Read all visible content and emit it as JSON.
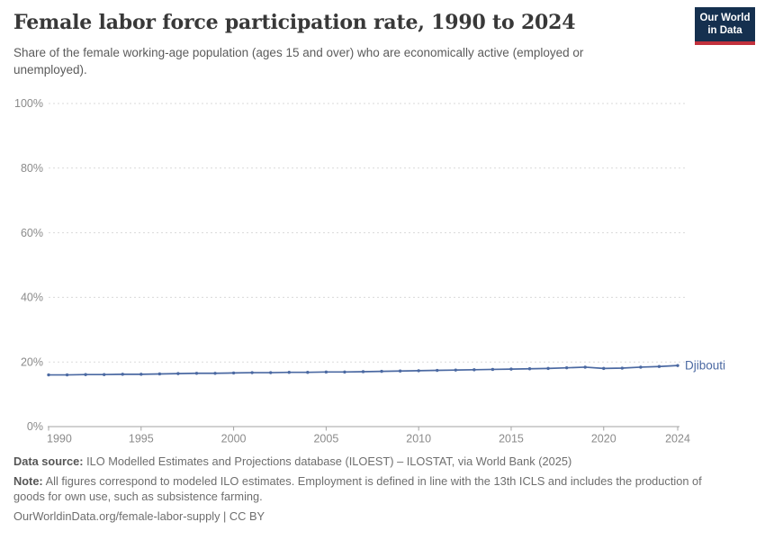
{
  "header": {
    "title": "Female labor force participation rate, 1990 to 2024",
    "subtitle": "Share of the female working-age population (ages 15 and over) who are economically active (employed or unemployed).",
    "logo": {
      "line1": "Our World",
      "line2": "in Data"
    }
  },
  "chart_data": {
    "type": "line",
    "title": "Female labor force participation rate, 1990 to 2024",
    "xlabel": "",
    "ylabel": "",
    "xlim": [
      1990,
      2024
    ],
    "ylim": [
      0,
      100
    ],
    "x_ticks": [
      1990,
      1995,
      2000,
      2005,
      2010,
      2015,
      2020,
      2024
    ],
    "y_ticks": [
      0,
      20,
      40,
      60,
      80,
      100
    ],
    "y_tick_suffix": "%",
    "grid": "horizontal-dashed",
    "legend": "end-of-line-label",
    "series": [
      {
        "name": "Djibouti",
        "color": "#4b69a2",
        "x": [
          1990,
          1991,
          1992,
          1993,
          1994,
          1995,
          1996,
          1997,
          1998,
          1999,
          2000,
          2001,
          2002,
          2003,
          2004,
          2005,
          2006,
          2007,
          2008,
          2009,
          2010,
          2011,
          2012,
          2013,
          2014,
          2015,
          2016,
          2017,
          2018,
          2019,
          2020,
          2021,
          2022,
          2023,
          2024
        ],
        "values": [
          16.0,
          16.0,
          16.1,
          16.1,
          16.2,
          16.2,
          16.3,
          16.4,
          16.5,
          16.5,
          16.6,
          16.7,
          16.7,
          16.8,
          16.8,
          16.9,
          16.9,
          17.0,
          17.1,
          17.2,
          17.3,
          17.4,
          17.5,
          17.6,
          17.7,
          17.8,
          17.9,
          18.0,
          18.2,
          18.4,
          18.0,
          18.1,
          18.4,
          18.6,
          18.9
        ]
      }
    ]
  },
  "footer": {
    "data_source_label": "Data source:",
    "data_source": "ILO Modelled Estimates and Projections database (ILOEST) – ILOSTAT, via World Bank (2025)",
    "note_label": "Note:",
    "note": "All figures correspond to modeled ILO estimates. Employment is defined in line with the 13th ICLS and includes the production of goods for own use, such as subsistence farming.",
    "citation": "OurWorldinData.org/female-labor-supply | CC BY"
  },
  "colors": {
    "series_blue": "#4b69a2",
    "logo_navy": "#15304f",
    "logo_red": "#c2313c",
    "grid": "#dadada",
    "axis": "#a3a3a3",
    "tick_label": "#8b8b8b"
  }
}
